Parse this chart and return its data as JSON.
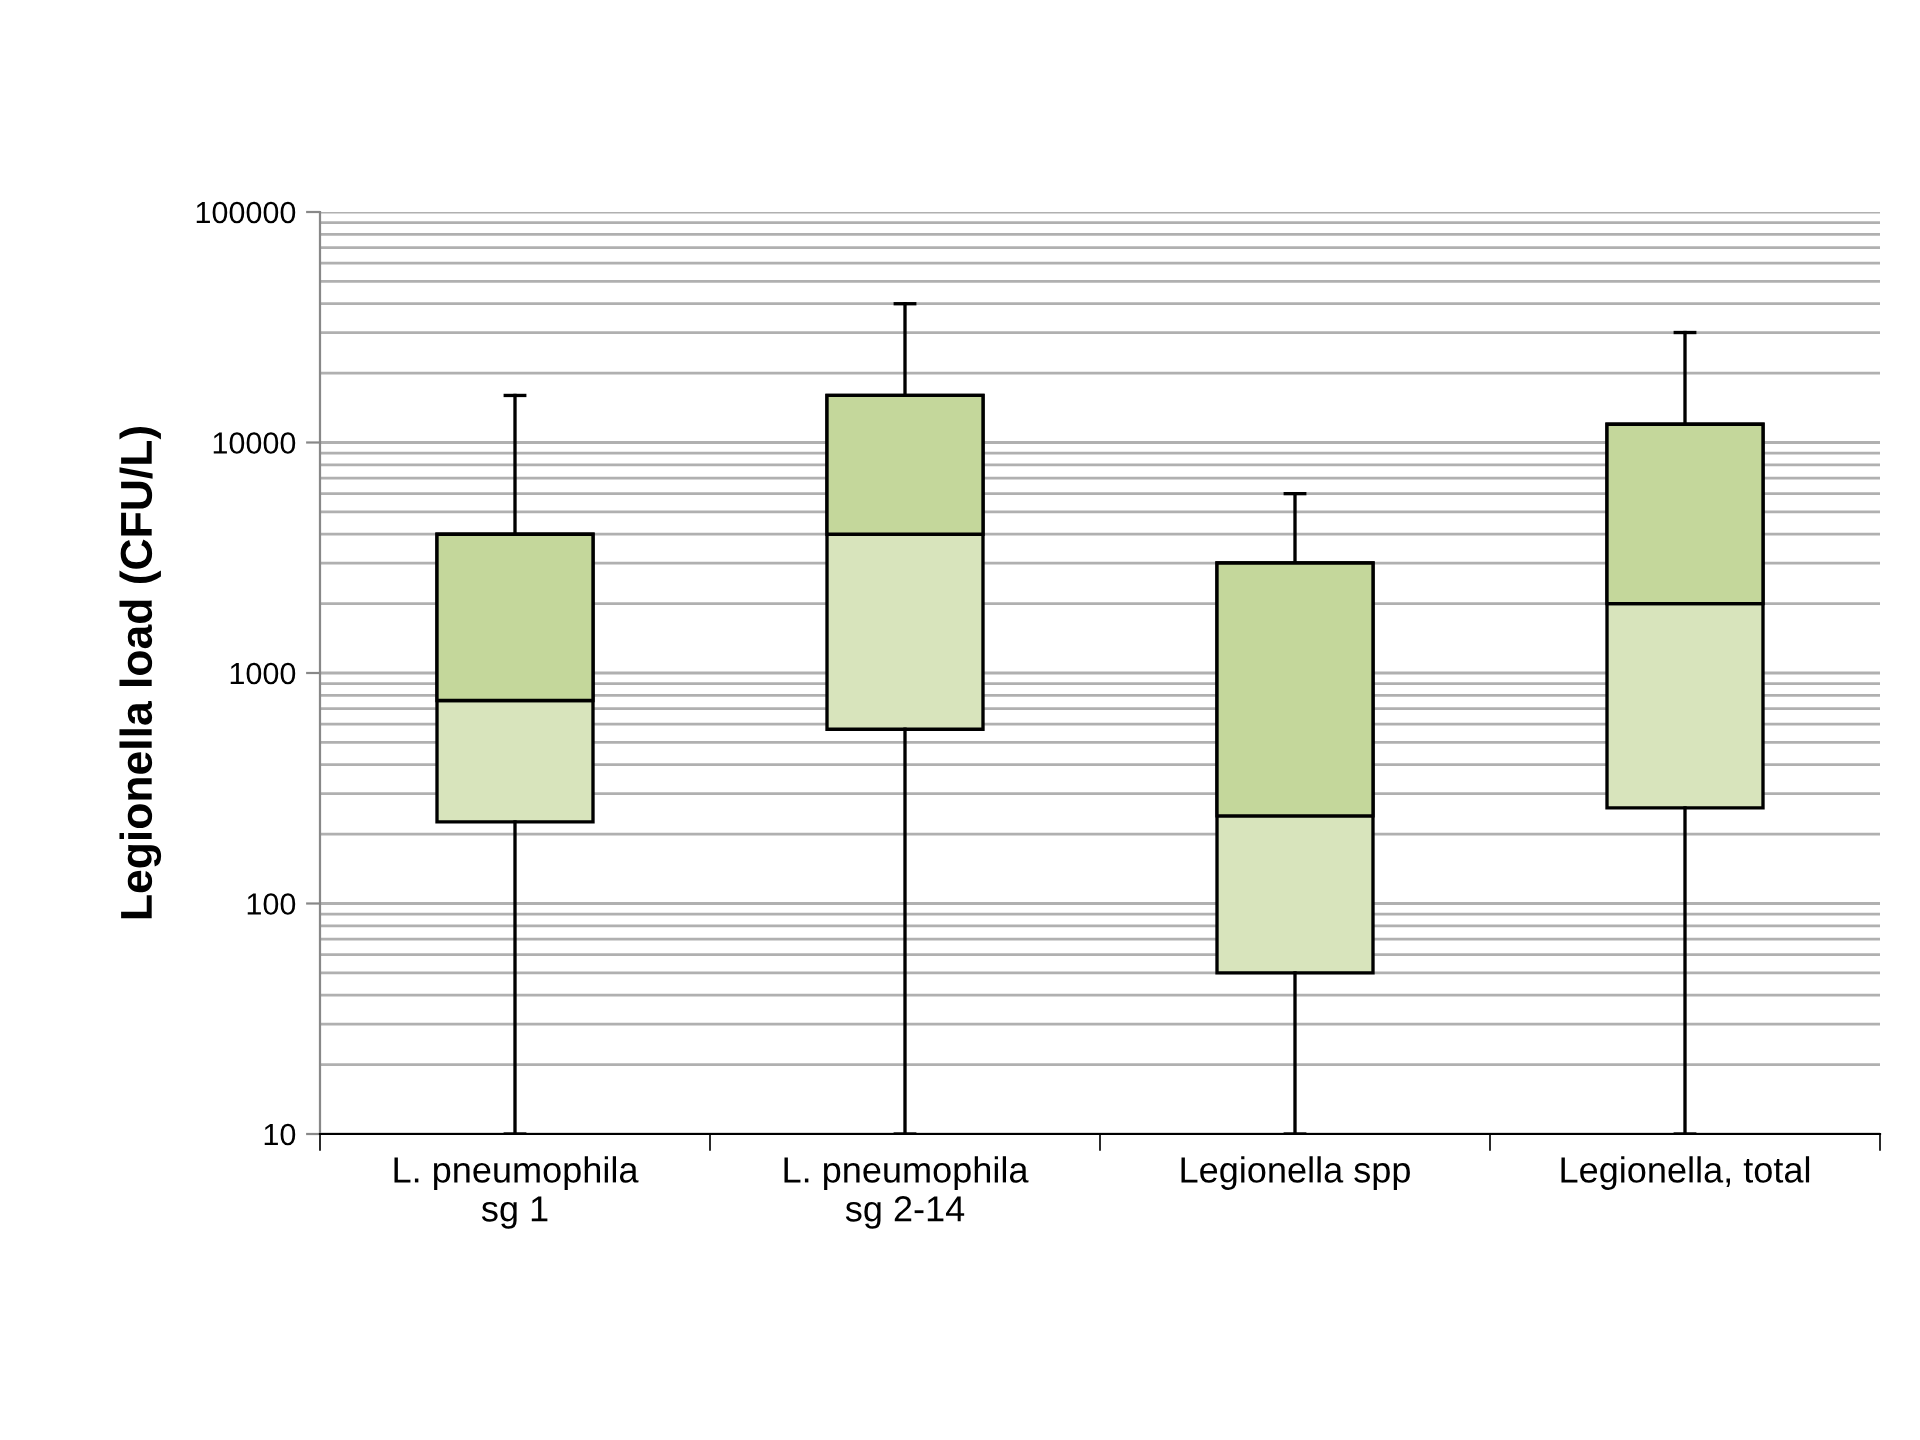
{
  "chart_data": {
    "type": "box",
    "ylabel": "Legionella load (CFU/L)",
    "categories": [
      "L. pneumophila\nsg 1",
      "L. pneumophila\nsg 2-14",
      "Legionella spp",
      "Legionella, total"
    ],
    "boxes": [
      {
        "low": 10,
        "q1": 226,
        "median": 760,
        "q3": 4000,
        "high": 16000
      },
      {
        "low": 10,
        "q1": 570,
        "median": 4000,
        "q3": 16000,
        "high": 40000
      },
      {
        "low": 10,
        "q1": 50,
        "median": 240,
        "q3": 3000,
        "high": 6000
      },
      {
        "low": 10,
        "q1": 260,
        "median": 2000,
        "q3": 12000,
        "high": 30000
      }
    ],
    "colors": [
      "#d8e4bc",
      "#d8e4bc",
      "#d8e4bc",
      "#d8e4bc"
    ],
    "color": "#c4d79b",
    "log": "y",
    "ylim": [
      10,
      100000
    ],
    "yticks": [
      10,
      100,
      1000,
      10000,
      100000
    ],
    "grid": "y"
  }
}
